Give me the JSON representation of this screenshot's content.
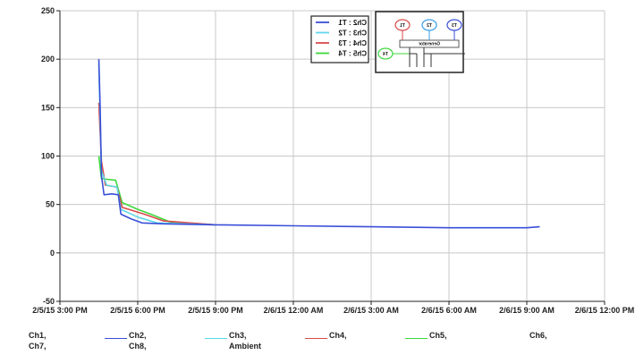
{
  "chart_data": {
    "type": "line",
    "ylim": [
      -50,
      250
    ],
    "y_ticks": [
      -50,
      0,
      50,
      100,
      150,
      200,
      250
    ],
    "y_tick_labels": [
      "-50",
      "0",
      "50",
      "100",
      "150",
      "200",
      "250"
    ],
    "x_tick_labels": [
      "2/5/15 3:00 PM",
      "2/5/15 6:00 PM",
      "2/5/15 9:00 PM",
      "2/6/15 12:00 AM",
      "2/6/15 3:00 AM",
      "2/6/15 6:00 AM",
      "2/6/15 9:00 AM",
      "2/6/15 12:00 PM"
    ],
    "xlim": [
      "2/5/15 3:00 PM",
      "2/6/15 12:00 PM"
    ],
    "grid": true,
    "series": [
      {
        "name": "Ch2",
        "color": "#3a4fd8",
        "points": [
          [
            "2/5/15 4:30 PM",
            200
          ],
          [
            "2/5/15 4:33 PM",
            150
          ],
          [
            "2/5/15 4:36 PM",
            80
          ],
          [
            "2/5/15 4:42 PM",
            60
          ],
          [
            "2/5/15 5:00 PM",
            61
          ],
          [
            "2/5/15 5:15 PM",
            60
          ],
          [
            "2/5/15 5:21 PM",
            40
          ],
          [
            "2/5/15 5:45 PM",
            35
          ],
          [
            "2/5/15 6:10 PM",
            31
          ],
          [
            "2/5/15 7:00 PM",
            30
          ],
          [
            "2/5/15 9:00 PM",
            29
          ],
          [
            "2/6/15 12:00 AM",
            28
          ],
          [
            "2/6/15 3:00 AM",
            27
          ],
          [
            "2/6/15 6:00 AM",
            26
          ],
          [
            "2/6/15 9:00 AM",
            26
          ],
          [
            "2/6/15 9:30 AM",
            27
          ]
        ]
      },
      {
        "name": "Ch3",
        "color": "#5fd8e8",
        "points": [
          [
            "2/5/15 4:30 PM",
            195
          ],
          [
            "2/5/15 4:36 PM",
            85
          ],
          [
            "2/5/15 4:48 PM",
            70
          ],
          [
            "2/5/15 5:12 PM",
            68
          ],
          [
            "2/5/15 5:21 PM",
            45
          ],
          [
            "2/5/15 6:00 PM",
            37
          ],
          [
            "2/5/15 6:45 PM",
            31
          ],
          [
            "2/5/15 9:00 PM",
            29
          ]
        ]
      },
      {
        "name": "Ch4",
        "color": "#d84a4a",
        "points": [
          [
            "2/5/15 4:30 PM",
            155
          ],
          [
            "2/5/15 4:36 PM",
            95
          ],
          [
            "2/5/15 4:45 PM",
            70
          ],
          [
            "2/5/15 5:12 PM",
            68
          ],
          [
            "2/5/15 5:24 PM",
            47
          ],
          [
            "2/5/15 6:15 PM",
            40
          ],
          [
            "2/5/15 7:00 PM",
            33
          ],
          [
            "2/5/15 9:00 PM",
            29
          ]
        ]
      },
      {
        "name": "Ch5",
        "color": "#3ed83e",
        "points": [
          [
            "2/5/15 4:30 PM",
            100
          ],
          [
            "2/5/15 4:36 PM",
            77
          ],
          [
            "2/5/15 4:48 PM",
            76
          ],
          [
            "2/5/15 5:09 PM",
            75
          ],
          [
            "2/5/15 5:24 PM",
            52
          ],
          [
            "2/5/15 6:00 PM",
            45
          ],
          [
            "2/5/15 6:30 PM",
            40
          ],
          [
            "2/5/15 7:15 PM",
            32
          ],
          [
            "2/5/15 9:00 PM",
            29
          ]
        ]
      }
    ],
    "inset_legend": {
      "entries": [
        {
          "label": "Ch2 : T1",
          "color": "#3a4fd8"
        },
        {
          "label": "Ch3 : T2",
          "color": "#5fd8e8"
        },
        {
          "label": "Ch4 : T3",
          "color": "#d84a4a"
        },
        {
          "label": "Ch5 : T4",
          "color": "#3ed83e"
        }
      ]
    },
    "diagram": {
      "label": "Generator",
      "probes": [
        {
          "label": "T1",
          "color": "#d84a4a"
        },
        {
          "label": "T2",
          "color": "#3a9ee8"
        },
        {
          "label": "T3",
          "color": "#3a4fd8"
        },
        {
          "label": "T4",
          "color": "#3ed83e"
        }
      ]
    },
    "bottom_legend": [
      {
        "label": "Ch1,",
        "color": null
      },
      {
        "label": "Ch2,",
        "color": "#3a4fd8"
      },
      {
        "label": "Ch3,",
        "color": "#5fd8e8"
      },
      {
        "label": "Ch4,",
        "color": "#d84a4a"
      },
      {
        "label": "Ch5,",
        "color": "#3ed83e"
      },
      {
        "label": "Ch6,",
        "color": null
      },
      {
        "label": "Ch7,",
        "color": null
      },
      {
        "label": "Ch8,",
        "color": null
      },
      {
        "label": "Ambient",
        "color": null
      }
    ]
  }
}
